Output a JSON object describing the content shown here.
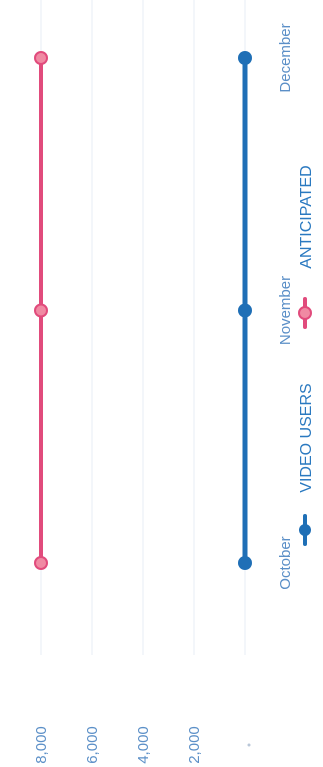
{
  "chart_data": {
    "type": "line",
    "orientation": "rotated-90",
    "categories": [
      "October",
      "November",
      "December"
    ],
    "y_ticks": [
      "2,000",
      "4,000",
      "6,000",
      "8,000"
    ],
    "ylim": [
      0,
      8000
    ],
    "grid": true,
    "legend_placement": "bottom",
    "series": [
      {
        "name": "VIDEO USERS",
        "color": "#1f6fb6",
        "values": [
          0,
          0,
          0
        ]
      },
      {
        "name": "ANTICIPATED",
        "color": "#e14b7c",
        "values": [
          8000,
          8000,
          8000
        ]
      }
    ]
  }
}
